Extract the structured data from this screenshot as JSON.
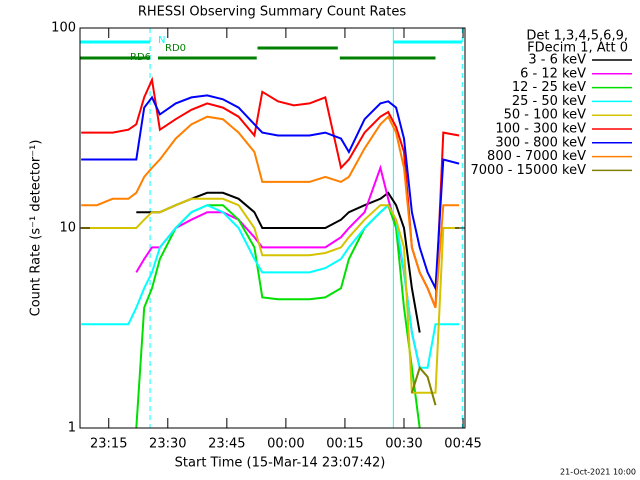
{
  "chart_data": {
    "type": "line",
    "title": "RHESSI Observing Summary Count Rates",
    "x_label": "Start Time (15-Mar-14 23:07:42)",
    "y_label": "Count Rate (s⁻¹ detector⁻¹)",
    "legend_title": [
      "Det 1,3,4,5,6,9,",
      "FDecim 1, Att 0"
    ],
    "footer": "21-Oct-2021 10:00",
    "log_y": true,
    "xlim": [
      7.7,
      105.5
    ],
    "xticks": [
      {
        "value": 15,
        "label": "23:15"
      },
      {
        "value": 30,
        "label": "23:30"
      },
      {
        "value": 45,
        "label": "23:45"
      },
      {
        "value": 60,
        "label": "00:00"
      },
      {
        "value": 75,
        "label": "00:15"
      },
      {
        "value": 90,
        "label": "00:30"
      },
      {
        "value": 105,
        "label": "00:45"
      }
    ],
    "ylim": [
      1,
      100
    ],
    "yticks": [
      1,
      10,
      100
    ],
    "x": [
      8,
      12,
      16,
      20,
      22,
      24,
      26,
      28,
      32,
      36,
      40,
      44,
      48,
      52,
      54,
      58,
      62,
      66,
      70,
      74,
      76,
      80,
      84,
      86,
      88,
      90,
      92,
      94,
      96,
      98,
      100,
      104
    ],
    "series": [
      {
        "name": "3 - 6 keV",
        "color": "#000000",
        "values": [
          null,
          null,
          null,
          null,
          12,
          12,
          12,
          12,
          13,
          14,
          15,
          15,
          14,
          12,
          10,
          10,
          10,
          10,
          10,
          11,
          12,
          13,
          14,
          15,
          13,
          10,
          5,
          3,
          null,
          null,
          null,
          null
        ]
      },
      {
        "name": "6 - 12 keV",
        "color": "#ff00ff",
        "values": [
          null,
          null,
          null,
          null,
          6,
          7,
          8,
          8,
          10,
          11,
          12,
          12,
          11,
          9,
          8,
          8,
          8,
          8,
          8,
          9,
          10,
          12,
          20,
          14,
          10,
          6,
          3,
          2,
          null,
          null,
          null,
          null
        ]
      },
      {
        "name": "12 - 25 keV",
        "color": "#00e000",
        "values": [
          null,
          null,
          null,
          null,
          1,
          4,
          5,
          7,
          10,
          12,
          13,
          13,
          11,
          8,
          4.5,
          4.4,
          4.4,
          4.4,
          4.5,
          5,
          7,
          10,
          12,
          13,
          10,
          4,
          2,
          1,
          null,
          null,
          null,
          null
        ]
      },
      {
        "name": "25 - 50 keV",
        "color": "#00ffff",
        "values": [
          3.3,
          3.3,
          3.3,
          3.3,
          4,
          5,
          6,
          8,
          10,
          12,
          13,
          12,
          10,
          7,
          6,
          6,
          6,
          6,
          6.3,
          7,
          8,
          10,
          12,
          13,
          11,
          6,
          3,
          2,
          2,
          3.3,
          3.3,
          3.3
        ]
      },
      {
        "name": "50 - 100 keV",
        "color": "#d4c400",
        "values": [
          10,
          10,
          10,
          10,
          10,
          11,
          12,
          12,
          13,
          14,
          14,
          14,
          13,
          10,
          7.3,
          7.3,
          7.3,
          7.3,
          7.5,
          8,
          9,
          11,
          13,
          13,
          11,
          8,
          1.5,
          1.5,
          1.5,
          1.5,
          10,
          10
        ]
      },
      {
        "name": "100 - 300 keV",
        "color": "#ff0000",
        "values": [
          30,
          30,
          30,
          31,
          33,
          45,
          55,
          31,
          35,
          39,
          42,
          40,
          36,
          29,
          48,
          43,
          41,
          42,
          45,
          20,
          22,
          30,
          36,
          38,
          32,
          24,
          8,
          6,
          5,
          4,
          30,
          29
        ]
      },
      {
        "name": "300 - 800 keV",
        "color": "#0000ff",
        "values": [
          22,
          22,
          22,
          22,
          22,
          40,
          45,
          37,
          42,
          45,
          46,
          44,
          40,
          33,
          30,
          29,
          29,
          29,
          30,
          28,
          24,
          35,
          42,
          43,
          40,
          28,
          12,
          8,
          6,
          5,
          22,
          21
        ]
      },
      {
        "name": "800 - 7000 keV",
        "color": "#ff8000",
        "values": [
          13,
          13,
          14,
          14,
          15,
          18,
          20,
          22,
          28,
          33,
          36,
          35,
          30,
          24,
          17,
          17,
          17,
          17,
          18,
          17,
          18,
          25,
          33,
          36,
          30,
          20,
          8,
          6,
          5,
          4,
          13,
          13
        ]
      },
      {
        "name": "7000 - 15000 keV",
        "color": "#808000",
        "values": [
          null,
          null,
          null,
          null,
          null,
          null,
          null,
          null,
          null,
          null,
          null,
          null,
          null,
          null,
          null,
          null,
          null,
          null,
          null,
          null,
          null,
          null,
          null,
          null,
          null,
          null,
          1.5,
          2,
          1.8,
          1.3,
          null,
          null
        ]
      }
    ],
    "flags": [
      {
        "label": "N",
        "color": "#00ffff",
        "intervals": [
          [
            7.7,
            25.5
          ],
          [
            87.3,
            104.8
          ]
        ]
      },
      {
        "label": "RD0",
        "color": "#008000",
        "intervals": [
          [
            52.8,
            73.2
          ]
        ]
      },
      {
        "label": "RD6",
        "color": "#008000",
        "intervals": [
          [
            7.7,
            25.5
          ],
          [
            27.5,
            52.6
          ],
          [
            73.7,
            98
          ]
        ]
      }
    ],
    "event_lines": [
      25.5,
      87.3,
      104.8
    ]
  }
}
